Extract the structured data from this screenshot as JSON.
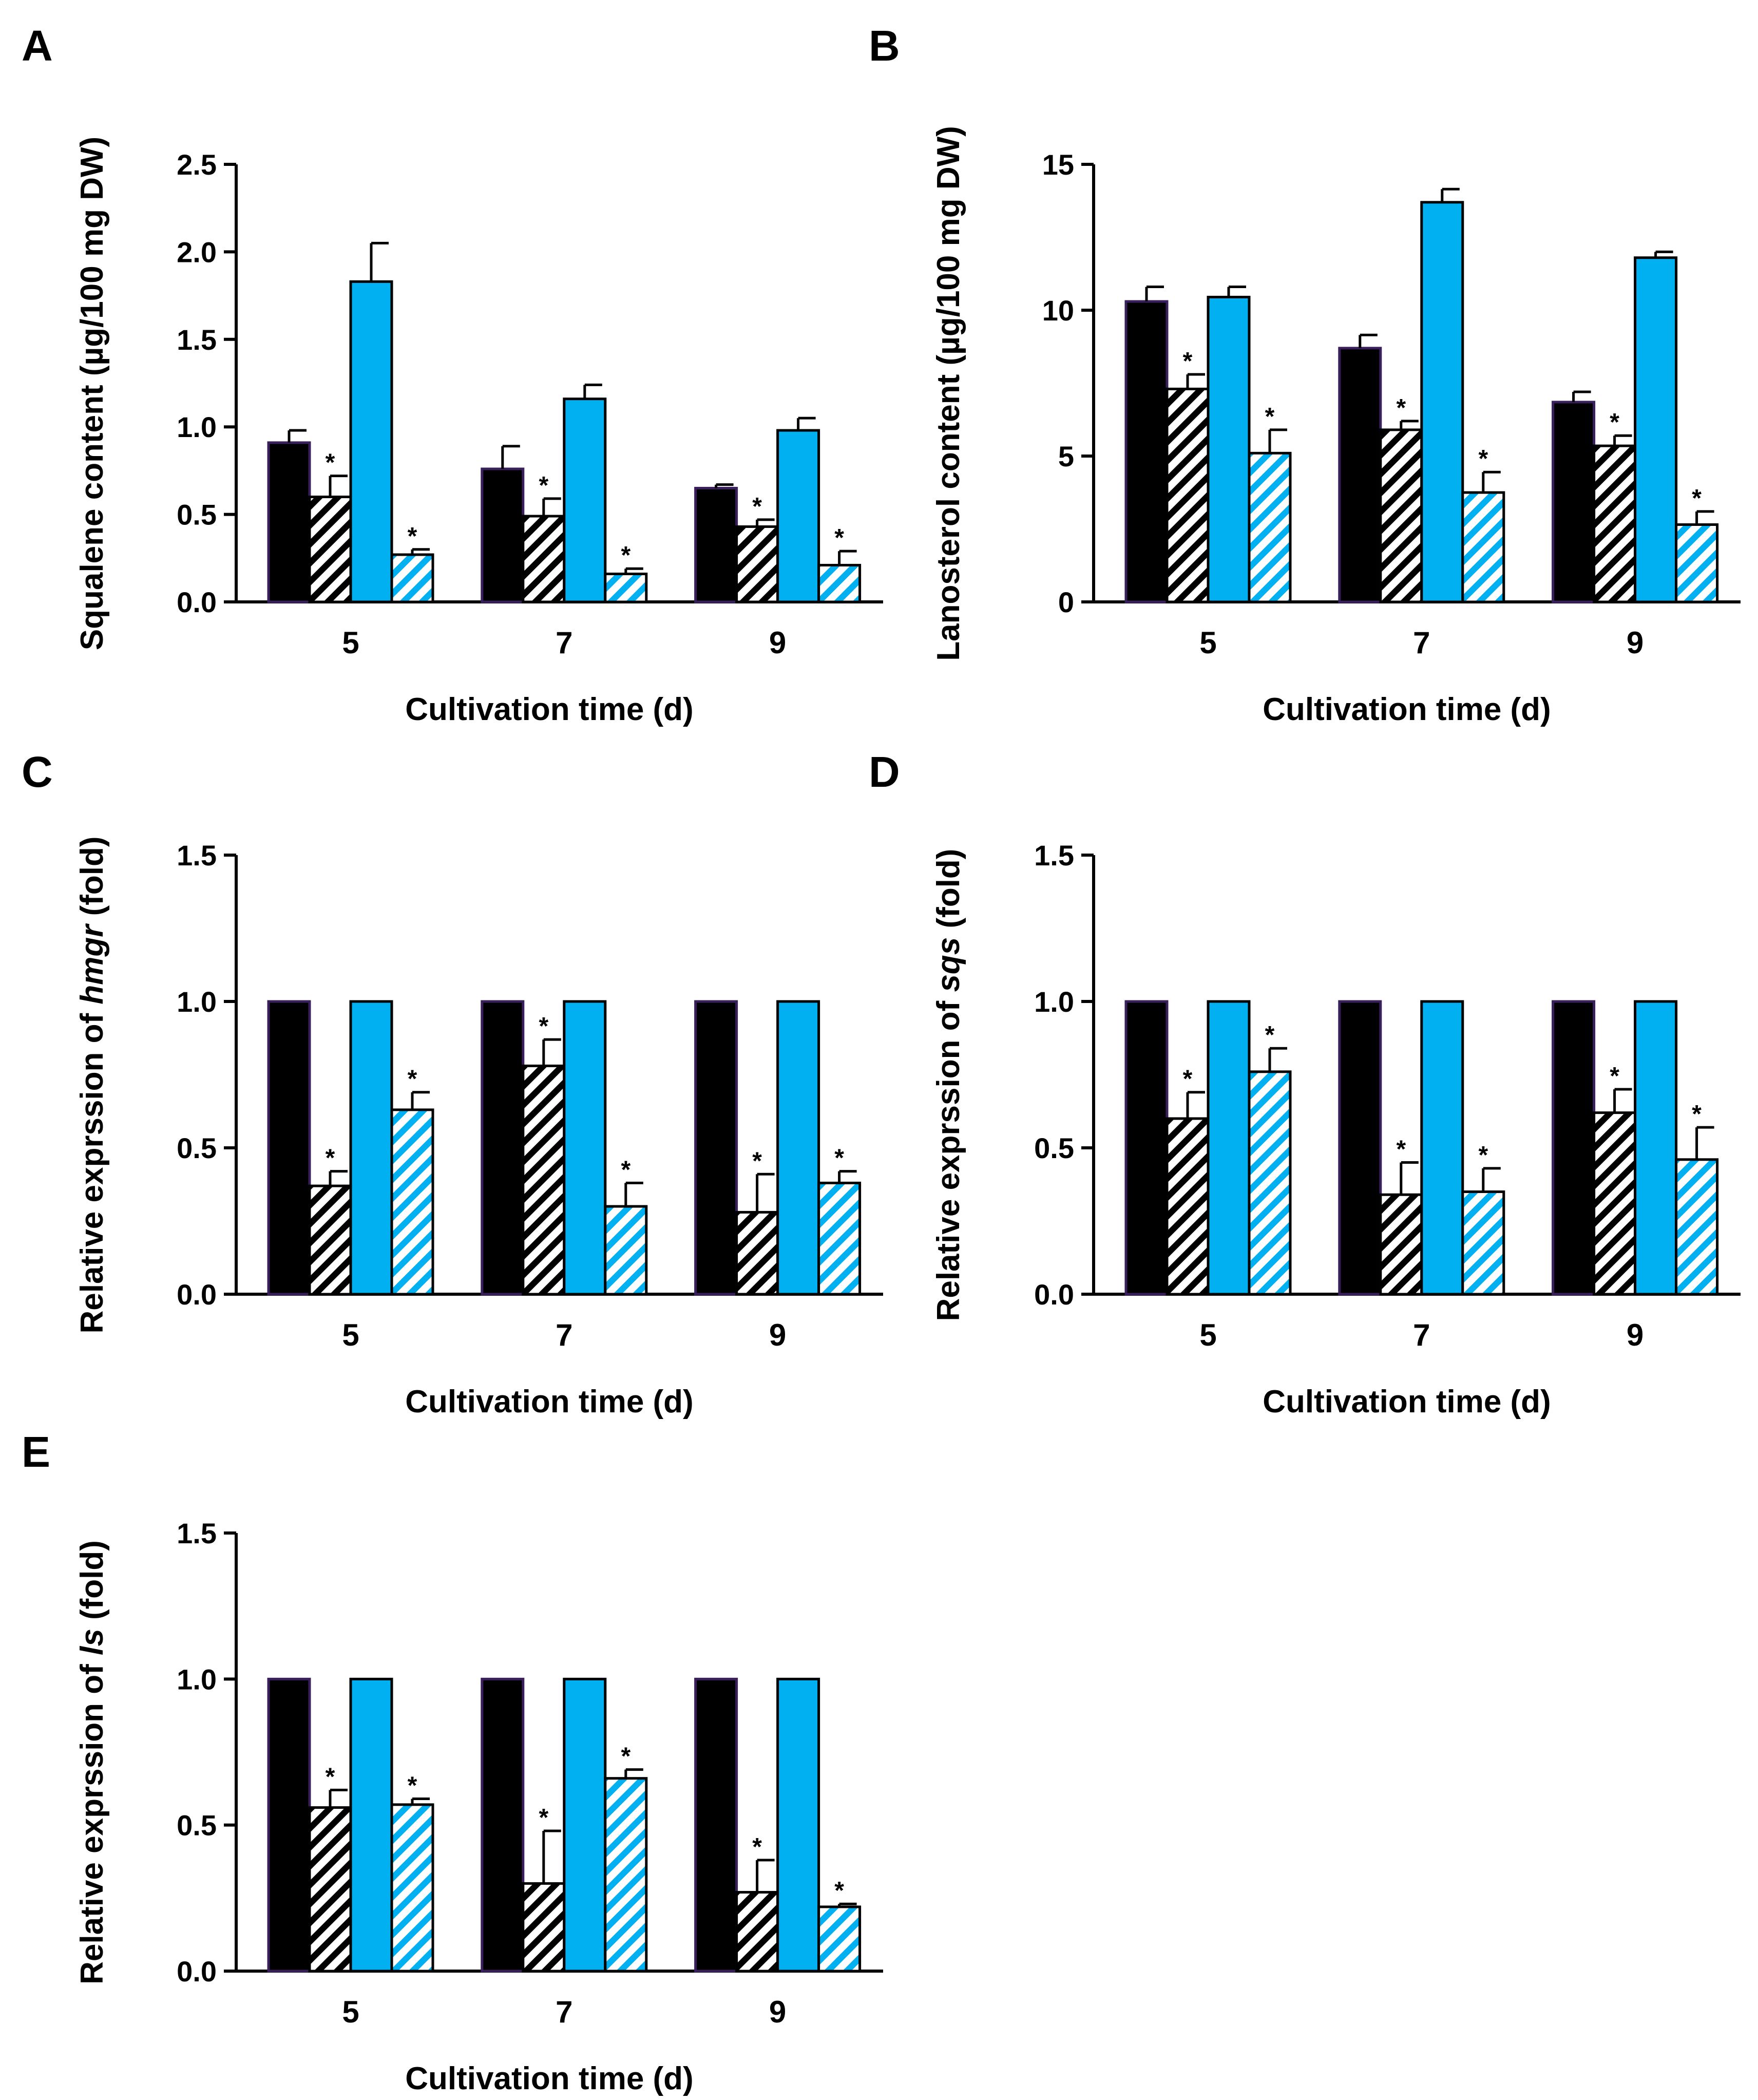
{
  "figure": {
    "colors": {
      "black": "#000000",
      "cyan": "#00b0f0",
      "outline": "#3a1f5d",
      "background": "#ffffff"
    }
  },
  "chart_data": [
    {
      "panel": "A",
      "type": "bar",
      "title": "",
      "xlabel": "Cultivation time (d)",
      "ylabel": "Squalene content (µg/100 mg DW)",
      "ylabel_parts": [
        {
          "text": "Squalene content (µg/100 mg DW)",
          "italic": false
        }
      ],
      "categories": [
        "5",
        "7",
        "9"
      ],
      "ylim": [
        0,
        2.5
      ],
      "yticks": [
        "0.0",
        "0.5",
        "1.0",
        "1.5",
        "2.0",
        "2.5"
      ],
      "series": [
        {
          "name": "black solid",
          "fill": "black",
          "hatched": false,
          "values": [
            0.91,
            0.76,
            0.65
          ],
          "errors": [
            0.07,
            0.13,
            0.02
          ],
          "significant": [
            false,
            false,
            false
          ]
        },
        {
          "name": "black hatched",
          "fill": "black",
          "hatched": true,
          "values": [
            0.6,
            0.49,
            0.43
          ],
          "errors": [
            0.12,
            0.1,
            0.04
          ],
          "significant": [
            true,
            true,
            true
          ]
        },
        {
          "name": "cyan solid",
          "fill": "cyan",
          "hatched": false,
          "values": [
            1.83,
            1.16,
            0.98
          ],
          "errors": [
            0.22,
            0.08,
            0.07
          ],
          "significant": [
            false,
            false,
            false
          ]
        },
        {
          "name": "cyan hatched",
          "fill": "cyan",
          "hatched": true,
          "values": [
            0.27,
            0.16,
            0.21
          ],
          "errors": [
            0.03,
            0.03,
            0.08
          ],
          "significant": [
            true,
            true,
            true
          ]
        }
      ]
    },
    {
      "panel": "B",
      "type": "bar",
      "title": "",
      "xlabel": "Cultivation time (d)",
      "ylabel": "Lanosterol content (µg/100 mg DW)",
      "ylabel_parts": [
        {
          "text": "Lanosterol content (µg/100 mg DW)",
          "italic": false
        }
      ],
      "categories": [
        "5",
        "7",
        "9"
      ],
      "ylim": [
        0,
        15
      ],
      "yticks": [
        "0",
        "5",
        "10",
        "15"
      ],
      "series": [
        {
          "name": "black solid",
          "fill": "black",
          "hatched": false,
          "values": [
            10.3,
            8.7,
            6.85
          ],
          "errors": [
            0.5,
            0.45,
            0.35
          ],
          "significant": [
            false,
            false,
            false
          ]
        },
        {
          "name": "black hatched",
          "fill": "black",
          "hatched": true,
          "values": [
            7.3,
            5.9,
            5.35
          ],
          "errors": [
            0.5,
            0.3,
            0.35
          ],
          "significant": [
            true,
            true,
            true
          ]
        },
        {
          "name": "cyan solid",
          "fill": "cyan",
          "hatched": false,
          "values": [
            10.45,
            13.7,
            11.8
          ],
          "errors": [
            0.35,
            0.45,
            0.2
          ],
          "significant": [
            false,
            false,
            false
          ]
        },
        {
          "name": "cyan hatched",
          "fill": "cyan",
          "hatched": true,
          "values": [
            5.1,
            3.75,
            2.65
          ],
          "errors": [
            0.8,
            0.7,
            0.45
          ],
          "significant": [
            true,
            true,
            true
          ]
        }
      ]
    },
    {
      "panel": "C",
      "type": "bar",
      "title": "",
      "xlabel": "Cultivation time (d)",
      "ylabel": "Relative exprssion of hmgr (fold)",
      "ylabel_parts": [
        {
          "text": "Relative exprssion of ",
          "italic": false
        },
        {
          "text": "hmgr",
          "italic": true
        },
        {
          "text": " (fold)",
          "italic": false
        }
      ],
      "categories": [
        "5",
        "7",
        "9"
      ],
      "ylim": [
        0,
        1.5
      ],
      "yticks": [
        "0.0",
        "0.5",
        "1.0",
        "1.5"
      ],
      "series": [
        {
          "name": "black solid",
          "fill": "black",
          "hatched": false,
          "values": [
            1.0,
            1.0,
            1.0
          ],
          "errors": [
            0,
            0,
            0
          ],
          "significant": [
            false,
            false,
            false
          ]
        },
        {
          "name": "black hatched",
          "fill": "black",
          "hatched": true,
          "values": [
            0.37,
            0.78,
            0.28
          ],
          "errors": [
            0.05,
            0.09,
            0.13
          ],
          "significant": [
            true,
            true,
            true
          ]
        },
        {
          "name": "cyan solid",
          "fill": "cyan",
          "hatched": false,
          "values": [
            1.0,
            1.0,
            1.0
          ],
          "errors": [
            0,
            0,
            0
          ],
          "significant": [
            false,
            false,
            false
          ]
        },
        {
          "name": "cyan hatched",
          "fill": "cyan",
          "hatched": true,
          "values": [
            0.63,
            0.3,
            0.38
          ],
          "errors": [
            0.06,
            0.08,
            0.04
          ],
          "significant": [
            true,
            true,
            true
          ]
        }
      ]
    },
    {
      "panel": "D",
      "type": "bar",
      "title": "",
      "xlabel": "Cultivation time (d)",
      "ylabel": "Relative exprssion of sqs (fold)",
      "ylabel_parts": [
        {
          "text": "Relative exprssion of ",
          "italic": false
        },
        {
          "text": "sqs",
          "italic": true
        },
        {
          "text": " (fold)",
          "italic": false
        }
      ],
      "categories": [
        "5",
        "7",
        "9"
      ],
      "ylim": [
        0,
        1.5
      ],
      "yticks": [
        "0.0",
        "0.5",
        "1.0",
        "1.5"
      ],
      "series": [
        {
          "name": "black solid",
          "fill": "black",
          "hatched": false,
          "values": [
            1.0,
            1.0,
            1.0
          ],
          "errors": [
            0,
            0,
            0
          ],
          "significant": [
            false,
            false,
            false
          ]
        },
        {
          "name": "black hatched",
          "fill": "black",
          "hatched": true,
          "values": [
            0.6,
            0.34,
            0.62
          ],
          "errors": [
            0.09,
            0.11,
            0.08
          ],
          "significant": [
            true,
            true,
            true
          ]
        },
        {
          "name": "cyan solid",
          "fill": "cyan",
          "hatched": false,
          "values": [
            1.0,
            1.0,
            1.0
          ],
          "errors": [
            0,
            0,
            0
          ],
          "significant": [
            false,
            false,
            false
          ]
        },
        {
          "name": "cyan hatched",
          "fill": "cyan",
          "hatched": true,
          "values": [
            0.76,
            0.35,
            0.46
          ],
          "errors": [
            0.08,
            0.08,
            0.11
          ],
          "significant": [
            true,
            true,
            true
          ]
        }
      ]
    },
    {
      "panel": "E",
      "type": "bar",
      "title": "",
      "xlabel": "Cultivation time (d)",
      "ylabel": "Relative exprssion of ls (fold)",
      "ylabel_parts": [
        {
          "text": "Relative exprssion of ",
          "italic": false
        },
        {
          "text": "ls",
          "italic": true
        },
        {
          "text": " (fold)",
          "italic": false
        }
      ],
      "categories": [
        "5",
        "7",
        "9"
      ],
      "ylim": [
        0,
        1.5
      ],
      "yticks": [
        "0.0",
        "0.5",
        "1.0",
        "1.5"
      ],
      "series": [
        {
          "name": "black solid",
          "fill": "black",
          "hatched": false,
          "values": [
            1.0,
            1.0,
            1.0
          ],
          "errors": [
            0,
            0,
            0
          ],
          "significant": [
            false,
            false,
            false
          ]
        },
        {
          "name": "black hatched",
          "fill": "black",
          "hatched": true,
          "values": [
            0.56,
            0.3,
            0.27
          ],
          "errors": [
            0.06,
            0.18,
            0.11
          ],
          "significant": [
            true,
            true,
            true
          ]
        },
        {
          "name": "cyan solid",
          "fill": "cyan",
          "hatched": false,
          "values": [
            1.0,
            1.0,
            1.0
          ],
          "errors": [
            0,
            0,
            0
          ],
          "significant": [
            false,
            false,
            false
          ]
        },
        {
          "name": "cyan hatched",
          "fill": "cyan",
          "hatched": true,
          "values": [
            0.57,
            0.66,
            0.22
          ],
          "errors": [
            0.02,
            0.03,
            0.01
          ],
          "significant": [
            true,
            true,
            true
          ]
        }
      ]
    }
  ]
}
